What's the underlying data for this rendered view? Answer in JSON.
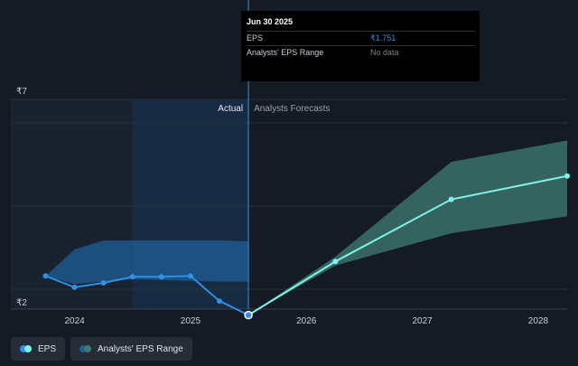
{
  "colors": {
    "background": "#151b24",
    "actual_shade": "#1a2230",
    "highlight_shade": "#172b43",
    "eps_actual": "#2e90e8",
    "eps_forecast": "#7ef3e9",
    "range_actual": "#1f5f97",
    "range_forecast": "#3f7c74",
    "divider": "#2e90e8"
  },
  "chart_data": {
    "type": "line",
    "y_ticks": [
      {
        "label": "₹7",
        "value": 7
      },
      {
        "label": "₹2",
        "value": 2
      }
    ],
    "x_ticks": [
      {
        "label": "2024",
        "value": 2024.0
      },
      {
        "label": "2025",
        "value": 2025.0
      },
      {
        "label": "2026",
        "value": 2026.0
      },
      {
        "label": "2027",
        "value": 2027.0
      },
      {
        "label": "2028",
        "value": 2028.0
      }
    ],
    "xlim": [
      2023.45,
      2028.25
    ],
    "ylim": [
      1.9,
      7.1
    ],
    "sections": {
      "actual": "Actual",
      "forecast": "Analysts Forecasts"
    },
    "divider_x": 2025.5,
    "highlight_start_x": 2024.5,
    "series": [
      {
        "name": "EPS",
        "segment": "actual",
        "x": [
          2023.75,
          2024.0,
          2024.25,
          2024.5,
          2024.75,
          2025.0,
          2025.25,
          2025.5
        ],
        "y": [
          2.72,
          2.44,
          2.55,
          2.7,
          2.7,
          2.72,
          2.1,
          1.751
        ]
      },
      {
        "name": "EPS",
        "segment": "forecast",
        "x": [
          2025.5,
          2026.25,
          2027.25,
          2028.25
        ],
        "y": [
          1.751,
          3.08,
          4.62,
          5.2
        ]
      }
    ],
    "range_actual": {
      "x": [
        2023.75,
        2024.0,
        2024.25,
        2024.5,
        2024.75,
        2025.0,
        2025.25,
        2025.5
      ],
      "upper": [
        2.72,
        3.38,
        3.6,
        3.6,
        3.6,
        3.6,
        3.6,
        3.58
      ],
      "lower": [
        2.72,
        2.52,
        2.58,
        2.64,
        2.62,
        2.6,
        2.58,
        2.58
      ]
    },
    "range_forecast": {
      "x": [
        2025.5,
        2026.25,
        2027.25,
        2028.25
      ],
      "upper": [
        1.751,
        3.2,
        5.55,
        6.08
      ],
      "lower": [
        1.751,
        2.98,
        3.78,
        4.2
      ]
    }
  },
  "tooltip": {
    "date": "Jun 30 2025",
    "rows": [
      {
        "label": "EPS",
        "value": "₹1.751"
      },
      {
        "label": "Analysts' EPS Range",
        "value": "No data"
      }
    ]
  },
  "legend": [
    {
      "label": "EPS"
    },
    {
      "label": "Analysts' EPS Range"
    }
  ]
}
